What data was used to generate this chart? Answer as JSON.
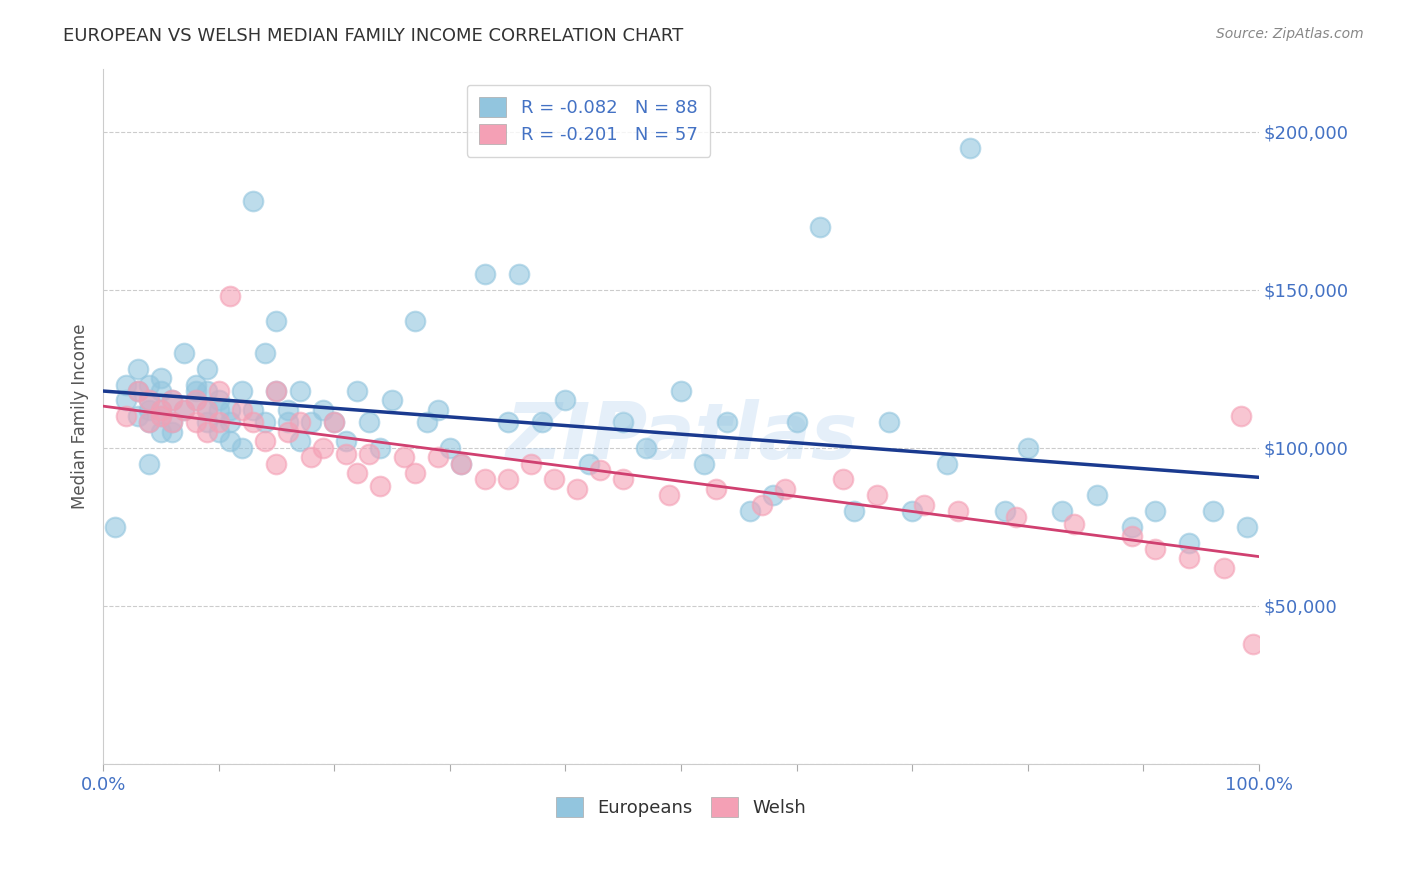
{
  "title": "EUROPEAN VS WELSH MEDIAN FAMILY INCOME CORRELATION CHART",
  "source": "Source: ZipAtlas.com",
  "ylabel": "Median Family Income",
  "xlim": [
    0.0,
    1.0
  ],
  "ylim": [
    0,
    220000
  ],
  "legend_label1": "R = -0.082   N = 88",
  "legend_label2": "R = -0.201   N = 57",
  "legend_labels_bottom": [
    "Europeans",
    "Welsh"
  ],
  "color_european": "#92c5de",
  "color_welsh": "#f4a0b5",
  "line_color_european": "#1a3a8f",
  "line_color_welsh": "#d04070",
  "watermark": "ZIPatlas",
  "european_x": [
    0.01,
    0.02,
    0.02,
    0.03,
    0.03,
    0.03,
    0.04,
    0.04,
    0.04,
    0.04,
    0.04,
    0.05,
    0.05,
    0.05,
    0.05,
    0.05,
    0.06,
    0.06,
    0.06,
    0.07,
    0.07,
    0.08,
    0.08,
    0.08,
    0.09,
    0.09,
    0.09,
    0.09,
    0.1,
    0.1,
    0.1,
    0.11,
    0.11,
    0.11,
    0.12,
    0.12,
    0.13,
    0.13,
    0.14,
    0.14,
    0.15,
    0.15,
    0.16,
    0.16,
    0.17,
    0.17,
    0.18,
    0.19,
    0.2,
    0.21,
    0.22,
    0.23,
    0.24,
    0.25,
    0.27,
    0.28,
    0.29,
    0.3,
    0.31,
    0.33,
    0.35,
    0.36,
    0.38,
    0.4,
    0.42,
    0.45,
    0.47,
    0.5,
    0.52,
    0.54,
    0.56,
    0.58,
    0.6,
    0.62,
    0.65,
    0.68,
    0.7,
    0.73,
    0.75,
    0.78,
    0.8,
    0.83,
    0.86,
    0.89,
    0.91,
    0.94,
    0.96,
    0.99
  ],
  "european_y": [
    75000,
    115000,
    120000,
    110000,
    118000,
    125000,
    112000,
    108000,
    115000,
    120000,
    95000,
    110000,
    105000,
    112000,
    118000,
    122000,
    108000,
    115000,
    105000,
    112000,
    130000,
    115000,
    120000,
    118000,
    112000,
    108000,
    118000,
    125000,
    105000,
    112000,
    115000,
    108000,
    102000,
    112000,
    100000,
    118000,
    178000,
    112000,
    130000,
    108000,
    140000,
    118000,
    112000,
    108000,
    102000,
    118000,
    108000,
    112000,
    108000,
    102000,
    118000,
    108000,
    100000,
    115000,
    140000,
    108000,
    112000,
    100000,
    95000,
    155000,
    108000,
    155000,
    108000,
    115000,
    95000,
    108000,
    100000,
    118000,
    95000,
    108000,
    80000,
    85000,
    108000,
    170000,
    80000,
    108000,
    80000,
    95000,
    195000,
    80000,
    100000,
    80000,
    85000,
    75000,
    80000,
    70000,
    80000,
    75000
  ],
  "welsh_x": [
    0.02,
    0.03,
    0.04,
    0.04,
    0.05,
    0.05,
    0.06,
    0.06,
    0.07,
    0.08,
    0.08,
    0.09,
    0.09,
    0.1,
    0.1,
    0.11,
    0.12,
    0.13,
    0.14,
    0.15,
    0.15,
    0.16,
    0.17,
    0.18,
    0.19,
    0.2,
    0.21,
    0.22,
    0.23,
    0.24,
    0.26,
    0.27,
    0.29,
    0.31,
    0.33,
    0.35,
    0.37,
    0.39,
    0.41,
    0.43,
    0.45,
    0.49,
    0.53,
    0.57,
    0.59,
    0.64,
    0.67,
    0.71,
    0.74,
    0.79,
    0.84,
    0.89,
    0.91,
    0.94,
    0.97,
    0.985,
    0.995
  ],
  "welsh_y": [
    110000,
    118000,
    108000,
    115000,
    110000,
    112000,
    115000,
    108000,
    112000,
    108000,
    115000,
    105000,
    112000,
    108000,
    118000,
    148000,
    112000,
    108000,
    102000,
    95000,
    118000,
    105000,
    108000,
    97000,
    100000,
    108000,
    98000,
    92000,
    98000,
    88000,
    97000,
    92000,
    97000,
    95000,
    90000,
    90000,
    95000,
    90000,
    87000,
    93000,
    90000,
    85000,
    87000,
    82000,
    87000,
    90000,
    85000,
    82000,
    80000,
    78000,
    76000,
    72000,
    68000,
    65000,
    62000,
    110000,
    38000
  ]
}
